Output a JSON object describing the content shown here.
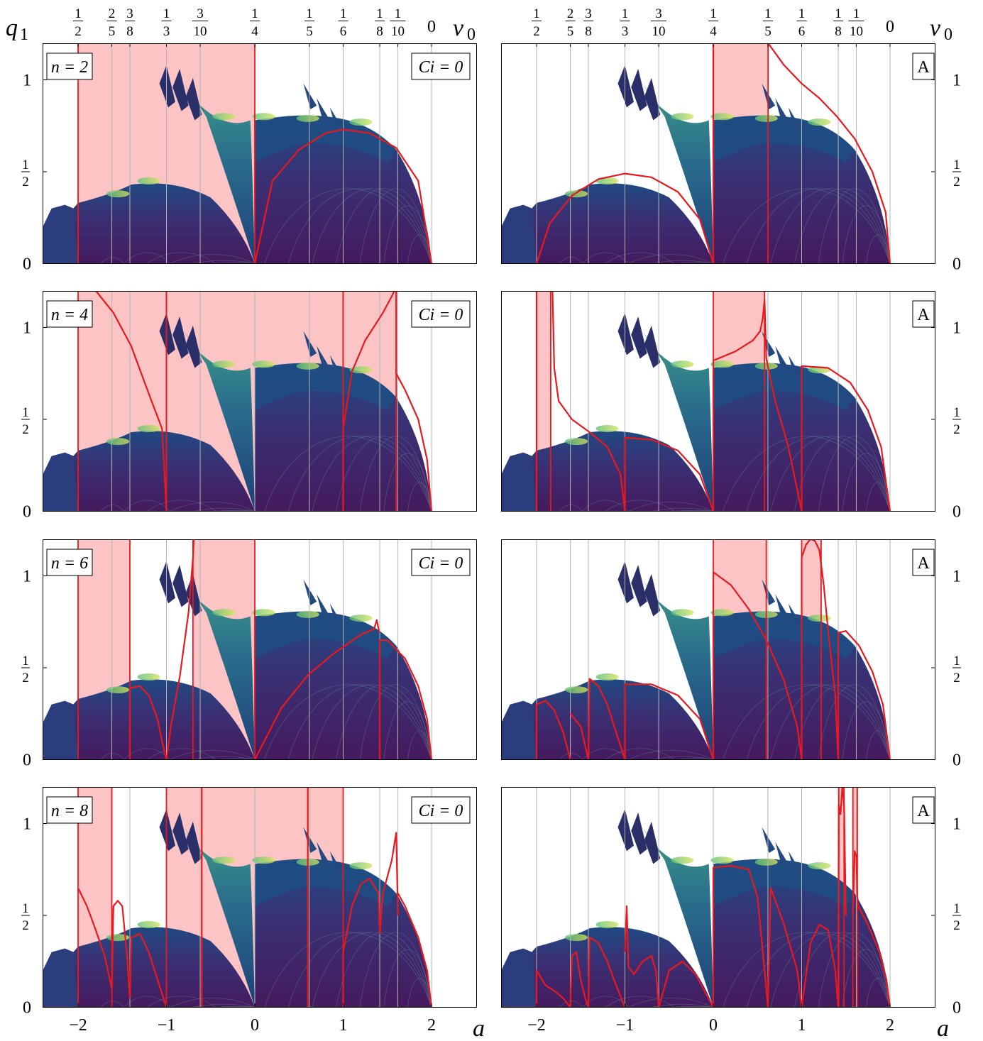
{
  "figure": {
    "left_y_title": {
      "main": "q",
      "sub": "1"
    },
    "top_x_title": {
      "main": "ν",
      "sub": "0"
    },
    "bottom_x_title": "a"
  },
  "nu_ticks": [
    {
      "a": -2,
      "num": "1",
      "den": "2"
    },
    {
      "a": -1.618,
      "num": "2",
      "den": "5"
    },
    {
      "a": -1.414,
      "num": "3",
      "den": "8"
    },
    {
      "a": -1,
      "num": "1",
      "den": "3"
    },
    {
      "a": -0.618,
      "num": "3",
      "den": "10"
    },
    {
      "a": 0,
      "num": "1",
      "den": "4"
    },
    {
      "a": 0.618,
      "num": "1",
      "den": "5"
    },
    {
      "a": 1,
      "num": "1",
      "den": "6"
    },
    {
      "a": 1.414,
      "num": "1",
      "den": "8"
    },
    {
      "a": 1.618,
      "num": "1",
      "den": "10"
    },
    {
      "a": 2,
      "plain": "0"
    }
  ],
  "a_ticks": [
    {
      "a": -2,
      "label": "−2"
    },
    {
      "a": -1,
      "label": "−1"
    },
    {
      "a": 0,
      "label": "0"
    },
    {
      "a": 1,
      "label": "1"
    },
    {
      "a": 2,
      "label": "2"
    }
  ],
  "q_ticks": [
    {
      "q": 0,
      "plain": "0"
    },
    {
      "q": 0.5,
      "num": "1",
      "den": "2"
    },
    {
      "q": 1,
      "plain": "1"
    }
  ],
  "panel_labels": {
    "left": [
      "n = 2",
      "n = 4",
      "n = 6",
      "n = 8"
    ],
    "left_corner": "Ci = 0",
    "right_corner": "A"
  },
  "colors": {
    "red_curve": "#e8191e",
    "red_fill": "#fcc4c4",
    "dark_purple": "#451a5e",
    "navy": "#1f3f7a",
    "teal": "#2a8a8a",
    "yellow_green": "#b8d85a",
    "gridline": "#b5b5b5"
  },
  "chart_data": [
    {
      "type": "area",
      "panel": "n=2, Ci=0",
      "xlim": [
        -2.4,
        2.5
      ],
      "ylim": [
        0,
        1.2
      ],
      "shaded_intervals": [
        [
          -2,
          0
        ]
      ],
      "curves": [
        {
          "x": [
            0,
            0.2,
            0.5,
            0.8,
            1.0,
            1.3,
            1.6,
            1.85,
            2.0
          ],
          "y": [
            0,
            0.45,
            0.62,
            0.71,
            0.73,
            0.71,
            0.63,
            0.45,
            0
          ]
        }
      ]
    },
    {
      "type": "area",
      "panel": "n=2, A",
      "xlim": [
        -2.4,
        2.5
      ],
      "ylim": [
        0,
        1.2
      ],
      "shaded_intervals": [
        [
          0,
          0.62
        ]
      ],
      "curves": [
        {
          "x": [
            -2,
            -1.85,
            -1.6,
            -1.3,
            -1.0,
            -0.7,
            -0.4,
            -0.15,
            0
          ],
          "y": [
            0,
            0.22,
            0.37,
            0.46,
            0.49,
            0.47,
            0.39,
            0.24,
            0
          ]
        },
        {
          "x": [
            0,
            0,
            0.62,
            0.65,
            0.8,
            1.0,
            1.2,
            1.4,
            1.6,
            1.8,
            1.95,
            2.0
          ],
          "y": [
            0,
            1.2,
            1.2,
            1.18,
            1.08,
            0.98,
            0.9,
            0.8,
            0.68,
            0.5,
            0.28,
            0
          ]
        }
      ]
    },
    {
      "type": "area",
      "panel": "n=4, Ci=0",
      "xlim": [
        -2.4,
        2.5
      ],
      "ylim": [
        0,
        1.2
      ],
      "shaded_intervals": [
        [
          -2,
          -1
        ],
        [
          -1,
          1
        ],
        [
          1,
          1.6
        ]
      ],
      "curves": [
        {
          "x": [
            -1.8,
            -1.6,
            -1.4,
            -1.2,
            -1.05,
            -1.0
          ],
          "y": [
            1.2,
            1.08,
            0.9,
            0.64,
            0.45,
            0
          ]
        },
        {
          "x": [
            1.0,
            1.0,
            1.1,
            1.25,
            1.45,
            1.55,
            1.58
          ],
          "y": [
            0,
            0.45,
            0.76,
            0.93,
            1.08,
            1.17,
            1.2
          ]
        },
        {
          "x": [
            1.6,
            1.6,
            1.7,
            1.85,
            1.95,
            2.0
          ],
          "y": [
            1.2,
            0.75,
            0.66,
            0.5,
            0.28,
            0
          ]
        }
      ]
    },
    {
      "type": "area",
      "panel": "n=4, A",
      "xlim": [
        -2.4,
        2.5
      ],
      "ylim": [
        0,
        1.2
      ],
      "shaded_intervals": [
        [
          -2,
          -1.84
        ],
        [
          0,
          0.58
        ]
      ],
      "curves": [
        {
          "x": [
            -2,
            -2,
            -1.82,
            -1.8,
            -1.75,
            -1.6,
            -1.4,
            -1.2,
            -1.05,
            -1.0
          ],
          "y": [
            0,
            1.2,
            1.2,
            0.78,
            0.6,
            0.5,
            0.43,
            0.35,
            0.2,
            0
          ]
        },
        {
          "x": [
            -1,
            -1,
            -0.7,
            -0.4,
            -0.15,
            0
          ],
          "y": [
            0,
            0.4,
            0.39,
            0.33,
            0.2,
            0
          ]
        },
        {
          "x": [
            0,
            0,
            0.25,
            0.45,
            0.53,
            0.56,
            0.58,
            0.6,
            0.7,
            0.85,
            1.0
          ],
          "y": [
            0,
            0.82,
            0.87,
            0.93,
            0.98,
            1.05,
            1.15,
            0.83,
            0.6,
            0.35,
            0
          ]
        },
        {
          "x": [
            1,
            1,
            1.3,
            1.55,
            1.75,
            1.9,
            2.0
          ],
          "y": [
            0,
            0.79,
            0.78,
            0.7,
            0.55,
            0.35,
            0
          ]
        }
      ]
    },
    {
      "type": "area",
      "panel": "n=6, Ci=0",
      "xlim": [
        -2.4,
        2.5
      ],
      "ylim": [
        0,
        1.2
      ],
      "shaded_intervals": [
        [
          -2,
          -1.414
        ],
        [
          -0.7,
          0
        ]
      ],
      "curves": [
        {
          "x": [
            -1.414,
            -1.414,
            -1.3,
            -1.2,
            -1.1,
            -1.05,
            -1.0
          ],
          "y": [
            0,
            0.39,
            0.4,
            0.35,
            0.22,
            0.1,
            0
          ]
        },
        {
          "x": [
            -1,
            -0.95,
            -0.85,
            -0.75,
            -0.7,
            -0.69
          ],
          "y": [
            0,
            0.18,
            0.45,
            0.8,
            1.1,
            1.2
          ]
        },
        {
          "x": [
            0,
            0.3,
            0.6,
            0.9,
            1.2,
            1.35,
            1.38,
            1.41
          ],
          "y": [
            0,
            0.28,
            0.46,
            0.58,
            0.68,
            0.71,
            0.76,
            0.69
          ]
        },
        {
          "x": [
            1.414,
            1.414,
            1.5,
            1.7,
            1.85,
            1.95,
            2.0
          ],
          "y": [
            0,
            0.65,
            0.65,
            0.55,
            0.4,
            0.22,
            0
          ]
        }
      ]
    },
    {
      "type": "area",
      "panel": "n=6, A",
      "xlim": [
        -2.4,
        2.5
      ],
      "ylim": [
        0,
        1.2
      ],
      "shaded_intervals": [
        [
          0,
          0.6
        ],
        [
          1.0,
          1.22
        ]
      ],
      "curves": [
        {
          "x": [
            -2,
            -2,
            -1.9,
            -1.8,
            -1.7,
            -1.618
          ],
          "y": [
            0,
            0.3,
            0.32,
            0.27,
            0.15,
            0
          ]
        },
        {
          "x": [
            -1.618,
            -1.5,
            -1.414
          ],
          "y": [
            0.25,
            0.18,
            0
          ]
        },
        {
          "x": [
            -1.414,
            -1.4,
            -1.3,
            -1.2,
            -1.1,
            -1.0
          ],
          "y": [
            0,
            0.44,
            0.4,
            0.3,
            0.15,
            0
          ]
        },
        {
          "x": [
            -1,
            -1,
            -0.7,
            -0.4,
            -0.15,
            0
          ],
          "y": [
            0,
            0.41,
            0.41,
            0.35,
            0.22,
            0
          ]
        },
        {
          "x": [
            0,
            0,
            0.2,
            0.4,
            0.6,
            0.8,
            0.95,
            1.0
          ],
          "y": [
            0,
            1.02,
            0.95,
            0.82,
            0.65,
            0.43,
            0.18,
            0
          ]
        },
        {
          "x": [
            1,
            1,
            1.05,
            1.1,
            1.15,
            1.2,
            1.25,
            1.3,
            1.38,
            1.414
          ],
          "y": [
            0,
            1.1,
            1.17,
            1.2,
            1.19,
            1.14,
            0.95,
            0.7,
            0.35,
            0
          ]
        },
        {
          "x": [
            1.414,
            1.414,
            1.5,
            1.65,
            1.8,
            1.92,
            2.0
          ],
          "y": [
            0,
            0.69,
            0.7,
            0.62,
            0.48,
            0.3,
            0
          ]
        }
      ]
    },
    {
      "type": "area",
      "panel": "n=8, Ci=0",
      "xlim": [
        -2.4,
        2.5
      ],
      "ylim": [
        0,
        1.2
      ],
      "shaded_intervals": [
        [
          -2,
          -1.618
        ],
        [
          -1,
          1
        ]
      ],
      "curves": [
        {
          "x": [
            -2,
            -1.9,
            -1.8,
            -1.7,
            -1.618
          ],
          "y": [
            0.65,
            0.55,
            0.42,
            0.28,
            0.1
          ]
        },
        {
          "x": [
            -1.618,
            -1.6,
            -1.55,
            -1.5,
            -1.45,
            -1.414
          ],
          "y": [
            0.1,
            0.55,
            0.58,
            0.55,
            0.3,
            0.05
          ]
        },
        {
          "x": [
            -1.414,
            -1.4,
            -1.3,
            -1.2,
            -1.1,
            -1.0
          ],
          "y": [
            0.05,
            0.38,
            0.4,
            0.3,
            0.15,
            0
          ]
        },
        {
          "x": [
            -0.6,
            -0.6
          ],
          "y": [
            0,
            1.2
          ]
        },
        {
          "x": [
            0.6,
            0.6
          ],
          "y": [
            0,
            1.2
          ]
        },
        {
          "x": [
            1,
            1,
            1.1,
            1.2,
            1.3,
            1.4,
            1.414
          ],
          "y": [
            0,
            0.3,
            0.55,
            0.67,
            0.7,
            0.62,
            0.4
          ]
        },
        {
          "x": [
            1.414,
            1.45,
            1.55,
            1.6,
            1.62
          ],
          "y": [
            0.4,
            0.62,
            0.8,
            0.95,
            0.5
          ]
        },
        {
          "x": [
            1.62,
            1.7,
            1.85,
            1.95,
            2.0
          ],
          "y": [
            0.62,
            0.55,
            0.38,
            0.2,
            0
          ]
        }
      ]
    },
    {
      "type": "area",
      "panel": "n=8, A",
      "xlim": [
        -2.4,
        2.5
      ],
      "ylim": [
        0,
        1.2
      ],
      "shaded_intervals": [
        [
          1.42,
          1.48
        ],
        [
          1.58,
          1.63
        ]
      ],
      "curves": [
        {
          "x": [
            -2,
            -2,
            -1.9,
            -1.8,
            -1.7,
            -1.618
          ],
          "y": [
            0,
            0.2,
            0.12,
            0.09,
            0.05,
            0
          ]
        },
        {
          "x": [
            -1.618,
            -1.6,
            -1.55,
            -1.5,
            -1.45,
            -1.414
          ],
          "y": [
            0,
            0.28,
            0.3,
            0.15,
            0.05,
            0
          ]
        },
        {
          "x": [
            -1.414,
            -1.4,
            -1.3,
            -1.2,
            -1.1,
            -1.0
          ],
          "y": [
            0,
            0.38,
            0.35,
            0.25,
            0.12,
            0
          ]
        },
        {
          "x": [
            -1,
            -0.98,
            -0.96,
            -0.9,
            -0.8,
            -0.7,
            -0.65,
            -0.618
          ],
          "y": [
            0.3,
            0.55,
            0.22,
            0.18,
            0.25,
            0.28,
            0.2,
            0
          ]
        },
        {
          "x": [
            -0.618,
            -0.5,
            -0.35,
            -0.2,
            0
          ],
          "y": [
            0,
            0.2,
            0.25,
            0.18,
            0
          ]
        },
        {
          "x": [
            0,
            0,
            0.2,
            0.4,
            0.5,
            0.55,
            0.6,
            0.618
          ],
          "y": [
            0,
            0.76,
            0.77,
            0.75,
            0.6,
            0.35,
            0.1,
            0
          ]
        },
        {
          "x": [
            0.618,
            0.65,
            0.8,
            0.95,
            1.0
          ],
          "y": [
            0,
            0.65,
            0.45,
            0.2,
            0
          ]
        },
        {
          "x": [
            1,
            1.1,
            1.2,
            1.3,
            1.38,
            1.414
          ],
          "y": [
            0,
            0.35,
            0.45,
            0.42,
            0.2,
            0
          ]
        },
        {
          "x": [
            1.414,
            1.42,
            1.44,
            1.46,
            1.48,
            1.5
          ],
          "y": [
            0,
            1.1,
            1.05,
            1.2,
            1.1,
            0.5
          ]
        },
        {
          "x": [
            1.58,
            1.6,
            1.62,
            1.63,
            1.64
          ],
          "y": [
            0.5,
            0.85,
            0.82,
            0.6,
            0.55
          ]
        },
        {
          "x": [
            1.64,
            1.75,
            1.88,
            1.96,
            2.0
          ],
          "y": [
            0.55,
            0.45,
            0.3,
            0.15,
            0
          ]
        }
      ]
    }
  ]
}
